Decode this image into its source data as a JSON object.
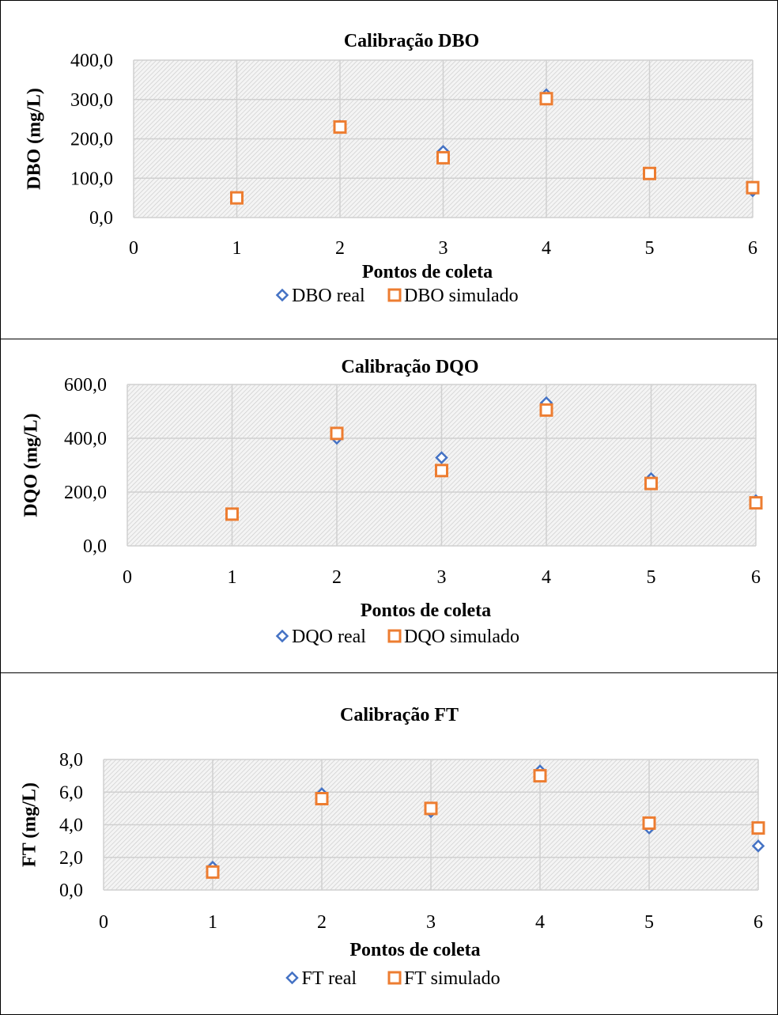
{
  "colors": {
    "real": "#4472C4",
    "simulado": "#ED7D31",
    "grid": "#d0d0d0"
  },
  "chart_data": [
    {
      "type": "scatter",
      "title": "Calibração DBO",
      "xlabel": "Pontos de coleta",
      "ylabel": "DBO (mg/L)",
      "xlim": [
        0,
        6
      ],
      "ylim": [
        0,
        400
      ],
      "x_ticks": [
        "0",
        "1",
        "2",
        "3",
        "4",
        "5",
        "6"
      ],
      "y_ticks": [
        "0,0",
        "100,0",
        "200,0",
        "300,0",
        "400,0"
      ],
      "y_tick_values": [
        0,
        100,
        200,
        300,
        400
      ],
      "grid": true,
      "legend_position": "bottom",
      "series": [
        {
          "name": "DBO real",
          "marker": "diamond",
          "x": [
            1,
            2,
            3,
            4,
            5,
            6
          ],
          "y": [
            50,
            232,
            168,
            312,
            112,
            68
          ]
        },
        {
          "name": "DBO simulado",
          "marker": "square",
          "x": [
            1,
            2,
            3,
            4,
            5,
            6
          ],
          "y": [
            50,
            230,
            152,
            302,
            112,
            76
          ]
        }
      ]
    },
    {
      "type": "scatter",
      "title": "Calibração DQO",
      "xlabel": "Pontos de coleta",
      "ylabel": "DQO (mg/L)",
      "xlim": [
        0,
        6
      ],
      "ylim": [
        0,
        600
      ],
      "x_ticks": [
        "0",
        "1",
        "2",
        "3",
        "4",
        "5",
        "6"
      ],
      "y_ticks": [
        "0,0",
        "200,0",
        "400,0",
        "600,0"
      ],
      "y_tick_values": [
        0,
        200,
        400,
        600
      ],
      "grid": true,
      "legend_position": "bottom",
      "series": [
        {
          "name": "DQO real",
          "marker": "diamond",
          "x": [
            1,
            2,
            3,
            4,
            5,
            6
          ],
          "y": [
            118,
            400,
            328,
            532,
            250,
            168
          ]
        },
        {
          "name": "DQO simulado",
          "marker": "square",
          "x": [
            1,
            2,
            3,
            4,
            5,
            6
          ],
          "y": [
            118,
            418,
            280,
            505,
            232,
            160
          ]
        }
      ]
    },
    {
      "type": "scatter",
      "title": "Calibração FT",
      "xlabel": "Pontos de coleta",
      "ylabel": "FT (mg/L)",
      "xlim": [
        0,
        6
      ],
      "ylim": [
        0,
        8
      ],
      "x_ticks": [
        "0",
        "1",
        "2",
        "3",
        "4",
        "5",
        "6"
      ],
      "y_ticks": [
        "0,0",
        "2,0",
        "4,0",
        "6,0",
        "8,0"
      ],
      "y_tick_values": [
        0,
        2,
        4,
        6,
        8
      ],
      "grid": true,
      "legend_position": "bottom",
      "series": [
        {
          "name": "FT real",
          "marker": "diamond",
          "x": [
            1,
            2,
            3,
            4,
            5,
            6
          ],
          "y": [
            1.4,
            5.9,
            4.8,
            7.3,
            3.8,
            2.7
          ]
        },
        {
          "name": "FT simulado",
          "marker": "square",
          "x": [
            1,
            2,
            3,
            4,
            5,
            6
          ],
          "y": [
            1.1,
            5.6,
            5.0,
            7.0,
            4.1,
            3.8
          ]
        }
      ]
    }
  ]
}
